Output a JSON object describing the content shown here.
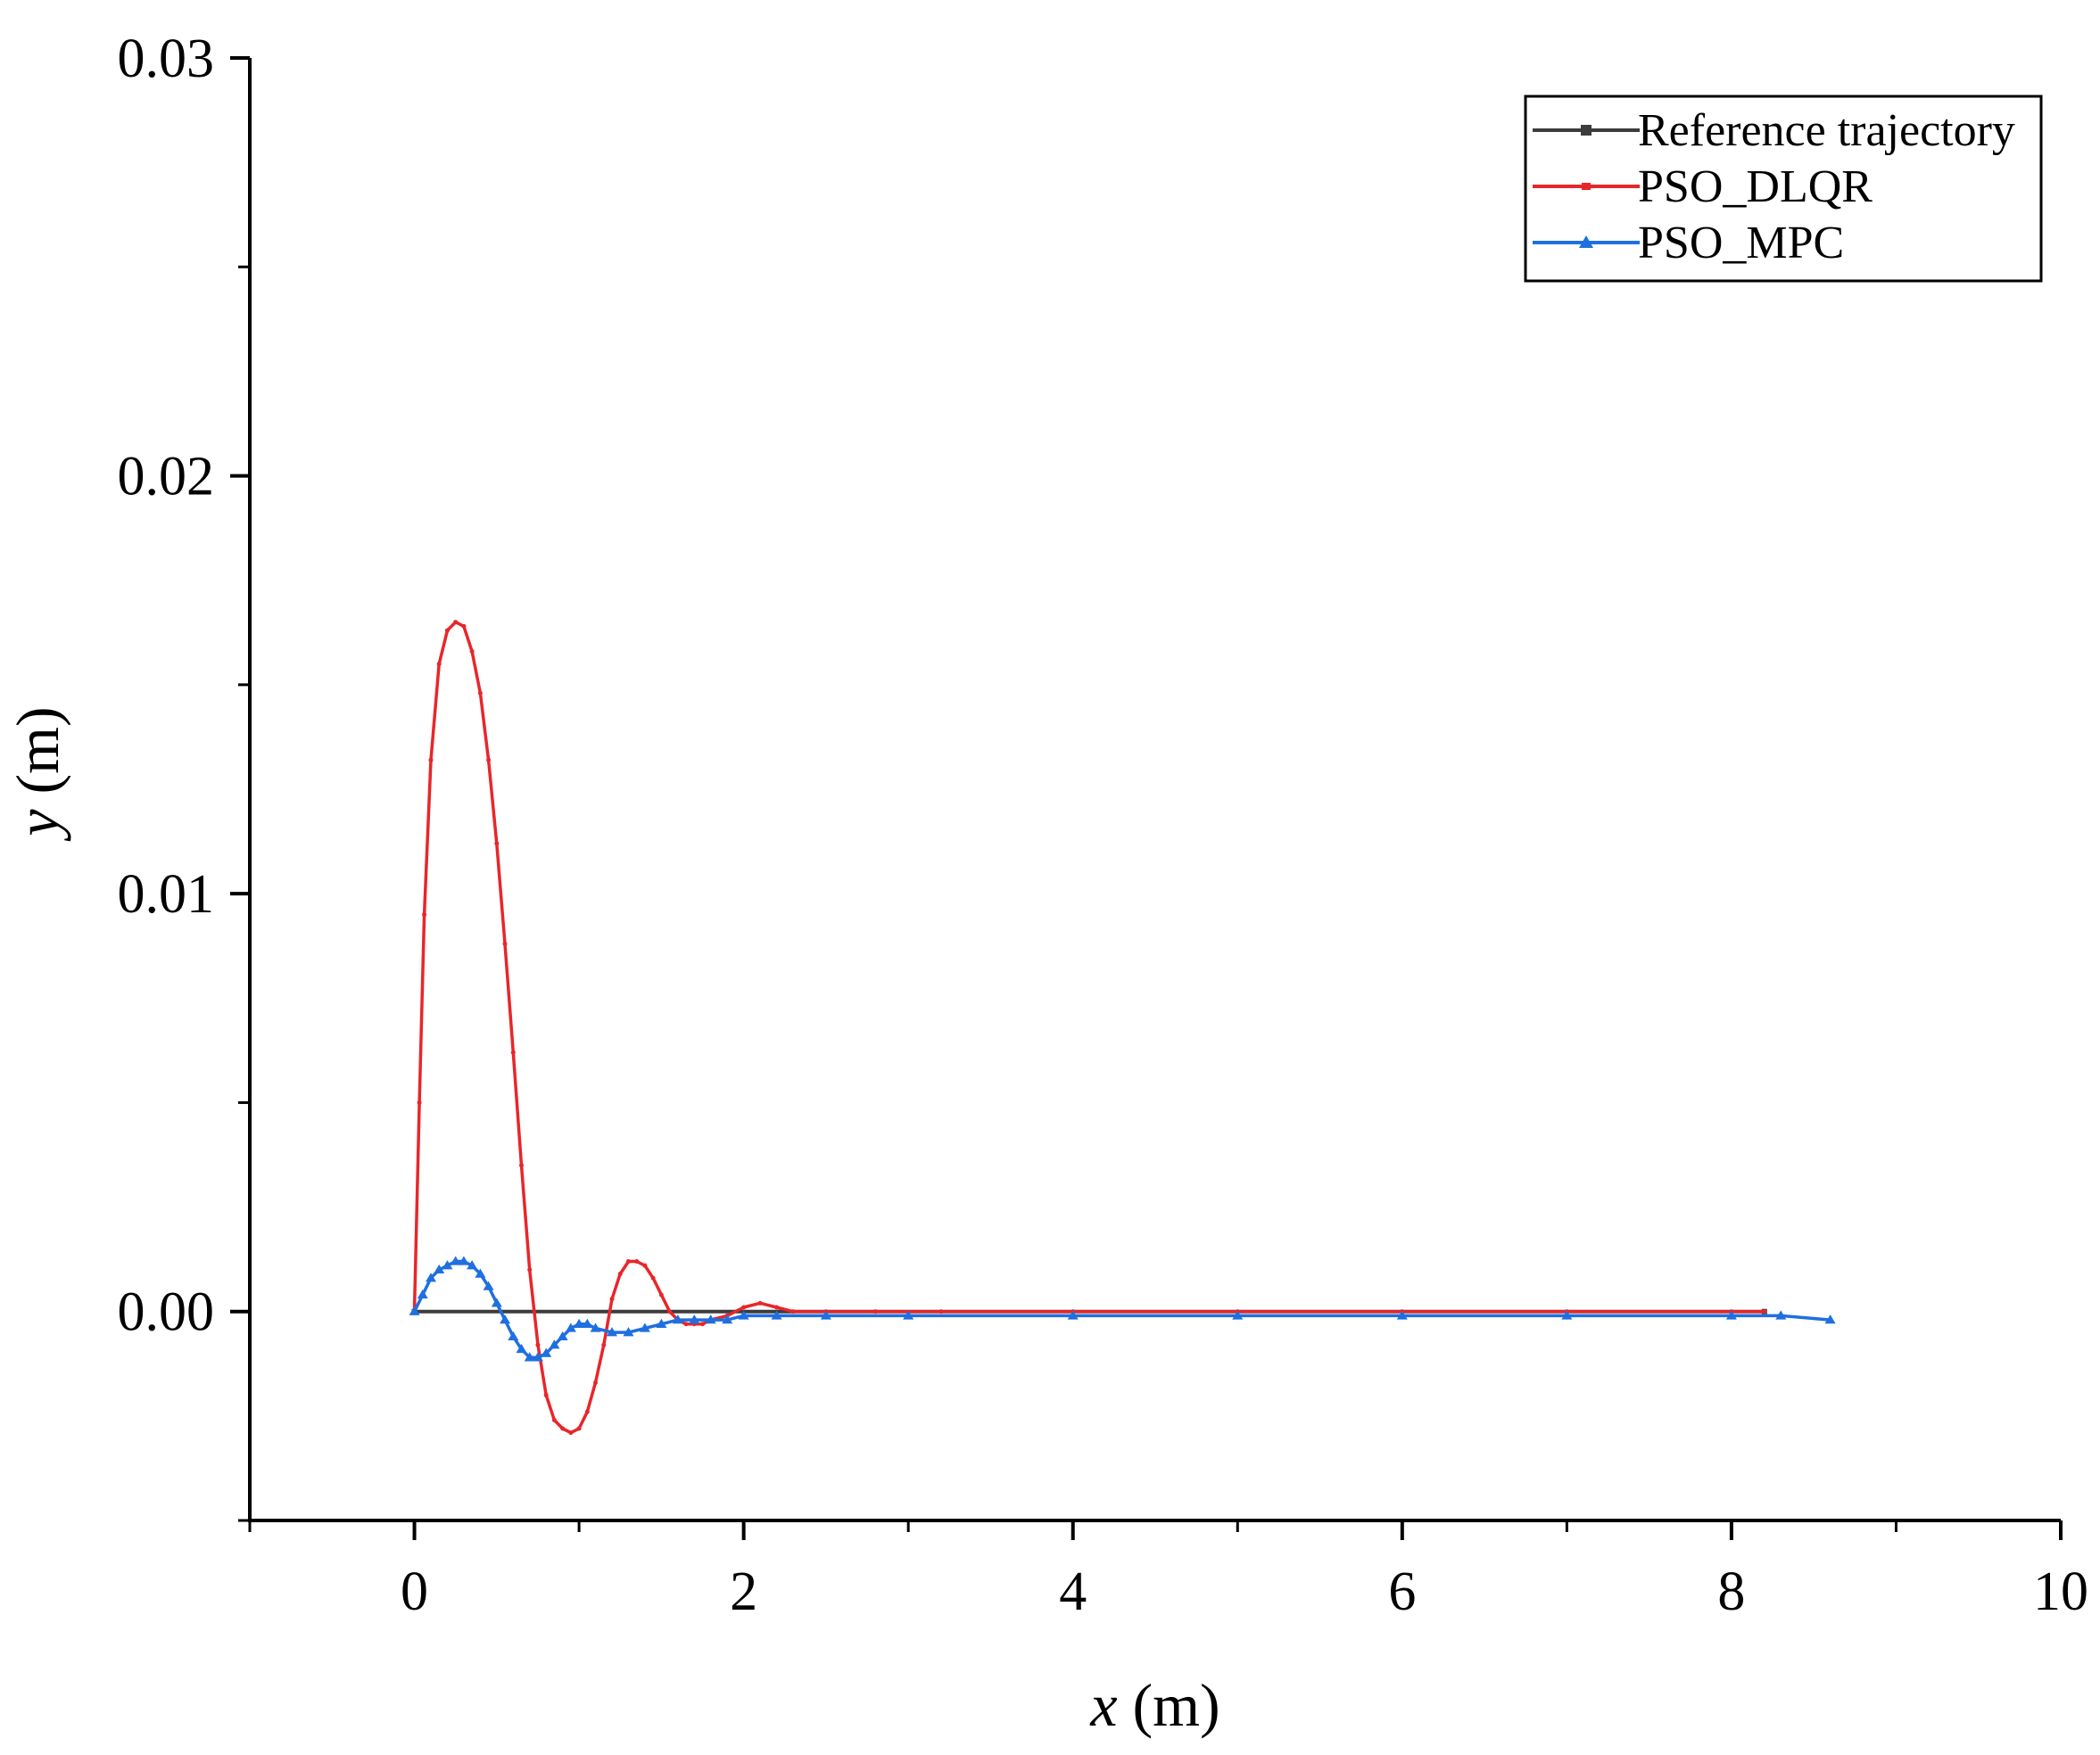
{
  "chart_data": {
    "type": "line",
    "title": "",
    "xlabel": {
      "var": "x",
      "unit": "(m)"
    },
    "ylabel": {
      "var": "y",
      "unit": "(m)"
    },
    "xlim": [
      -1,
      10
    ],
    "ylim": [
      -0.005,
      0.03
    ],
    "x_ticks": [
      0,
      2,
      4,
      6,
      8,
      10
    ],
    "x_tick_labels": [
      "0",
      "2",
      "4",
      "6",
      "8",
      "10"
    ],
    "y_ticks": [
      0,
      0.01,
      0.02,
      0.03
    ],
    "y_tick_labels": [
      "0.00",
      "0.01",
      "0.02",
      "0.03"
    ],
    "grid": false,
    "legend_position": "top-right",
    "series": [
      {
        "name": "Reference trajectory",
        "color": "#3c3c3c",
        "marker": "square",
        "x": [
          0,
          8.2
        ],
        "y": [
          0,
          0
        ]
      },
      {
        "name": "PSO_DLQR",
        "color": "#e8262a",
        "marker": "small-dot",
        "x": [
          0,
          0.03,
          0.06,
          0.1,
          0.15,
          0.2,
          0.25,
          0.3,
          0.35,
          0.4,
          0.45,
          0.5,
          0.55,
          0.6,
          0.65,
          0.7,
          0.75,
          0.8,
          0.85,
          0.9,
          0.95,
          1.0,
          1.05,
          1.1,
          1.15,
          1.2,
          1.25,
          1.3,
          1.35,
          1.4,
          1.45,
          1.5,
          1.55,
          1.6,
          1.65,
          1.7,
          1.75,
          1.8,
          1.9,
          2.0,
          2.1,
          2.2,
          2.3,
          2.5,
          2.8,
          3.2,
          4.0,
          5.0,
          6.0,
          7.0,
          8.0,
          8.2
        ],
        "y": [
          0,
          0.005,
          0.0095,
          0.0132,
          0.0155,
          0.0163,
          0.0165,
          0.0164,
          0.0158,
          0.0148,
          0.0132,
          0.0112,
          0.0088,
          0.0062,
          0.0035,
          0.001,
          -0.0008,
          -0.002,
          -0.0026,
          -0.0028,
          -0.0029,
          -0.0028,
          -0.0024,
          -0.0017,
          -0.0008,
          0.0003,
          0.0009,
          0.0012,
          0.0012,
          0.0011,
          0.0008,
          0.0004,
          0.0,
          -0.0002,
          -0.0003,
          -0.0003,
          -0.0003,
          -0.0002,
          -0.0001,
          0.0001,
          0.0002,
          0.0001,
          0.0,
          0.0,
          0.0,
          0.0,
          0.0,
          0.0,
          0.0,
          0.0,
          0.0,
          0.0
        ]
      },
      {
        "name": "PSO_MPC",
        "color": "#1f6fe0",
        "marker": "triangle",
        "x": [
          0,
          0.05,
          0.1,
          0.15,
          0.2,
          0.25,
          0.3,
          0.35,
          0.4,
          0.45,
          0.5,
          0.55,
          0.6,
          0.65,
          0.7,
          0.75,
          0.8,
          0.85,
          0.9,
          0.95,
          1.0,
          1.05,
          1.1,
          1.2,
          1.3,
          1.4,
          1.5,
          1.6,
          1.7,
          1.8,
          1.9,
          2.0,
          2.2,
          2.5,
          3.0,
          4.0,
          5.0,
          6.0,
          7.0,
          8.0,
          8.3,
          8.6
        ],
        "y": [
          0,
          0.0004,
          0.0008,
          0.001,
          0.0011,
          0.0012,
          0.0012,
          0.0011,
          0.0009,
          0.0006,
          0.0002,
          -0.0002,
          -0.0006,
          -0.0009,
          -0.0011,
          -0.0011,
          -0.001,
          -0.0008,
          -0.0006,
          -0.0004,
          -0.0003,
          -0.0003,
          -0.0004,
          -0.0005,
          -0.0005,
          -0.0004,
          -0.0003,
          -0.0002,
          -0.0002,
          -0.0002,
          -0.0002,
          -0.0001,
          -0.0001,
          -0.0001,
          -0.0001,
          -0.0001,
          -0.0001,
          -0.0001,
          -0.0001,
          -0.0001,
          -0.0001,
          -0.0002
        ]
      }
    ]
  }
}
